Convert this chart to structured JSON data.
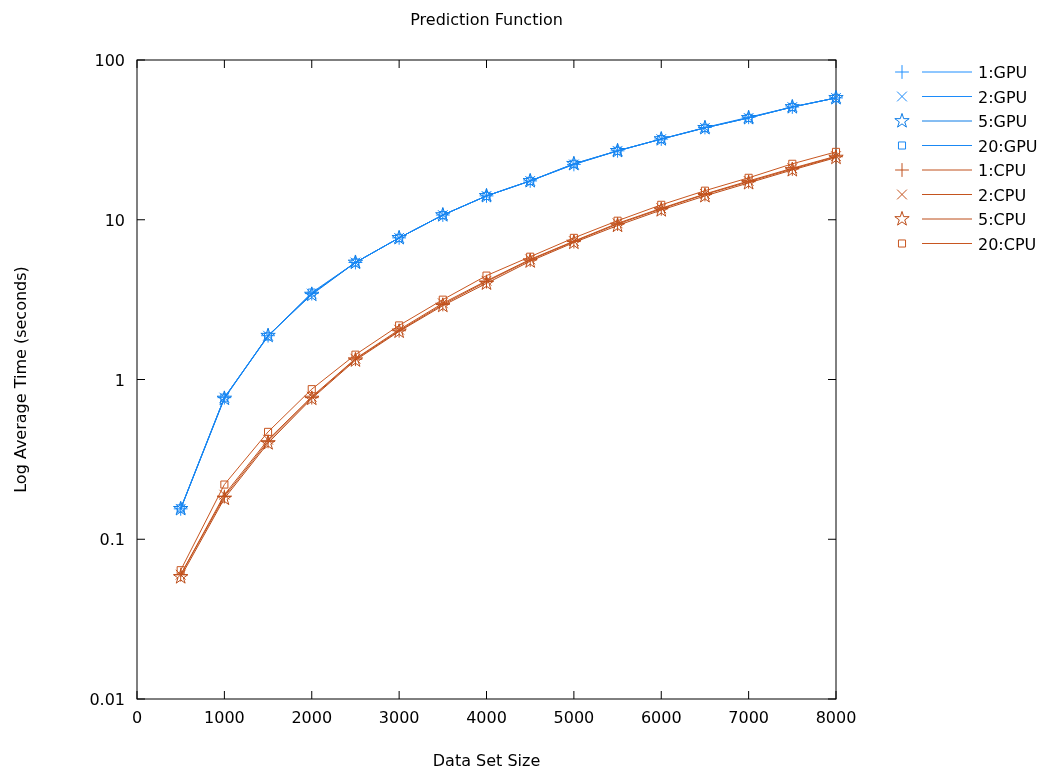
{
  "chart_data": {
    "type": "line",
    "title": "Prediction Function",
    "xlabel": "Data Set Size",
    "ylabel": "Log Average Time (seconds)",
    "x": [
      500,
      1000,
      1500,
      2000,
      2500,
      3000,
      3500,
      4000,
      4500,
      5000,
      5500,
      6000,
      6500,
      7000,
      7500,
      8000
    ],
    "xlim": [
      0,
      8000
    ],
    "xticks": [
      0,
      1000,
      2000,
      3000,
      4000,
      5000,
      6000,
      7000,
      8000
    ],
    "ylim": [
      0.01,
      100
    ],
    "yticks": [
      0.01,
      0.1,
      1,
      10,
      100
    ],
    "log": "y",
    "grid": false,
    "legend": "top right",
    "line_style": "solid",
    "series": [
      {
        "name": "1:GPU",
        "color": "#1e8fff",
        "marker": "cross",
        "values": [
          0.155,
          0.77,
          1.88,
          3.45,
          5.4,
          7.7,
          10.7,
          14.1,
          17.5,
          22.2,
          27,
          32,
          37.8,
          43.8,
          50.8,
          57.9
        ]
      },
      {
        "name": "2:GPU",
        "color": "#1c8bfa",
        "marker": "x",
        "values": [
          0.155,
          0.77,
          1.88,
          3.45,
          5.4,
          7.7,
          10.7,
          14.1,
          17.5,
          22.2,
          27,
          32,
          37.6,
          43.4,
          50.8,
          57.9
        ]
      },
      {
        "name": "5:GPU",
        "color": "#0c7ce6",
        "marker": "star",
        "values": [
          0.155,
          0.76,
          1.88,
          3.4,
          5.4,
          7.7,
          10.7,
          14.1,
          17.5,
          22.4,
          27,
          32,
          37.6,
          43.4,
          50.8,
          57.9
        ]
      },
      {
        "name": "20:GPU",
        "color": "#1a88f4",
        "marker": "square",
        "values": [
          0.156,
          0.77,
          1.86,
          3.5,
          5.4,
          7.7,
          10.7,
          14.1,
          17.5,
          22.4,
          27,
          32,
          37.6,
          43.4,
          50.8,
          57.9
        ]
      },
      {
        "name": "1:CPU",
        "color": "#c0501c",
        "marker": "cross",
        "values": [
          0.06,
          0.185,
          0.41,
          0.77,
          1.34,
          2.02,
          2.95,
          4.1,
          5.6,
          7.3,
          9.4,
          11.7,
          14.4,
          17.3,
          20.8,
          24.8
        ]
      },
      {
        "name": "2:CPU",
        "color": "#c4531e",
        "marker": "x",
        "values": [
          0.06,
          0.19,
          0.42,
          0.78,
          1.35,
          2.05,
          3.0,
          4.15,
          5.65,
          7.35,
          9.5,
          11.8,
          14.5,
          17.5,
          21,
          25
        ]
      },
      {
        "name": "5:CPU",
        "color": "#bc4c18",
        "marker": "star",
        "values": [
          0.058,
          0.18,
          0.4,
          0.76,
          1.32,
          2.0,
          2.9,
          4.0,
          5.5,
          7.2,
          9.2,
          11.5,
          14.1,
          17.0,
          20.5,
          24.5
        ]
      },
      {
        "name": "20:CPU",
        "color": "#c85620",
        "marker": "square",
        "values": [
          0.064,
          0.22,
          0.47,
          0.87,
          1.43,
          2.18,
          3.16,
          4.47,
          5.87,
          7.7,
          9.86,
          12.4,
          15.2,
          18.3,
          22.4,
          26.6
        ]
      }
    ]
  }
}
